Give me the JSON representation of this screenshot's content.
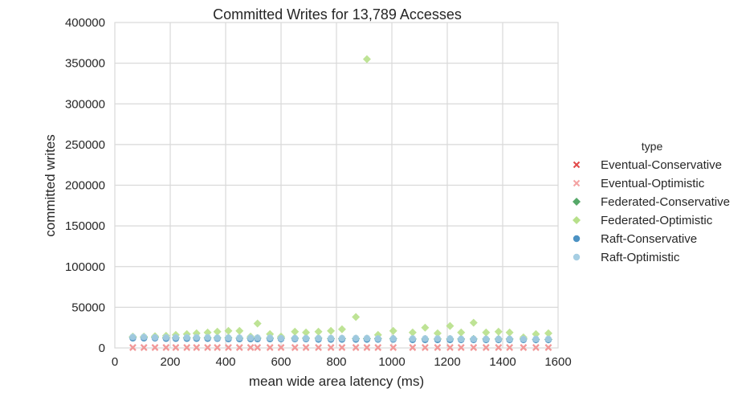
{
  "chart_data": {
    "type": "scatter",
    "title": "Committed Writes for 13,789 Accesses",
    "xlabel": "mean wide area latency (ms)",
    "ylabel": "committed writes",
    "xlim": [
      0,
      1600
    ],
    "ylim": [
      0,
      400000
    ],
    "xticks": [
      "0",
      "200",
      "400",
      "600",
      "800",
      "1000",
      "1200",
      "1400",
      "1600"
    ],
    "yticks": [
      "0",
      "50000",
      "100000",
      "150000",
      "200000",
      "250000",
      "300000",
      "350000",
      "400000"
    ],
    "grid": true,
    "legend": {
      "title": "type",
      "placement": "right"
    },
    "x": [
      65,
      105,
      145,
      185,
      220,
      260,
      295,
      335,
      370,
      410,
      450,
      490,
      515,
      560,
      600,
      650,
      690,
      735,
      780,
      820,
      870,
      910,
      950,
      1005,
      1075,
      1120,
      1165,
      1210,
      1250,
      1295,
      1340,
      1385,
      1425,
      1475,
      1520,
      1565
    ],
    "series": [
      {
        "name": "Eventual-Conservative",
        "marker": "x",
        "color": "#e24a4a",
        "values": [
          500,
          500,
          500,
          500,
          500,
          500,
          500,
          500,
          500,
          500,
          500,
          500,
          500,
          500,
          500,
          500,
          500,
          500,
          500,
          500,
          500,
          500,
          500,
          500,
          500,
          500,
          500,
          500,
          500,
          500,
          500,
          500,
          500,
          500,
          500,
          500
        ]
      },
      {
        "name": "Eventual-Optimistic",
        "marker": "x",
        "color": "#f4a3a3",
        "values": [
          800,
          800,
          800,
          800,
          800,
          800,
          800,
          800,
          800,
          800,
          800,
          800,
          800,
          800,
          800,
          800,
          800,
          800,
          800,
          800,
          800,
          800,
          800,
          800,
          800,
          800,
          800,
          800,
          800,
          800,
          800,
          800,
          800,
          800,
          800,
          800
        ]
      },
      {
        "name": "Federated-Conservative",
        "marker": "diamond",
        "color": "#55a868",
        "values": [
          13000,
          13000,
          13000,
          12500,
          12500,
          12500,
          12500,
          12500,
          12500,
          12500,
          12000,
          12000,
          12000,
          12000,
          12000,
          12000,
          12000,
          12000,
          11500,
          11500,
          11500,
          11500,
          11500,
          11500,
          11000,
          11000,
          11000,
          11000,
          11000,
          11000,
          11000,
          11000,
          11000,
          11000,
          10500,
          10500
        ]
      },
      {
        "name": "Federated-Optimistic",
        "marker": "diamond",
        "color": "#b7e08a",
        "values": [
          14000,
          14000,
          14500,
          15000,
          16000,
          17000,
          18000,
          19000,
          20000,
          21000,
          21000,
          14000,
          30000,
          17000,
          14000,
          20000,
          19000,
          20000,
          21000,
          23000,
          38000,
          355000,
          16000,
          21000,
          19000,
          25000,
          18000,
          27000,
          19000,
          31000,
          19000,
          20000,
          19000,
          13000,
          17000,
          18000
        ]
      },
      {
        "name": "Raft-Conservative",
        "marker": "circle",
        "color": "#4c92c3",
        "values": [
          12000,
          12000,
          12000,
          11500,
          11500,
          11500,
          11500,
          11500,
          11500,
          11000,
          11000,
          11000,
          11000,
          11000,
          11000,
          11000,
          11000,
          10500,
          10500,
          10500,
          10500,
          10500,
          10500,
          10500,
          10000,
          10000,
          10000,
          10000,
          10000,
          10000,
          10000,
          10000,
          10000,
          10000,
          10000,
          10000
        ]
      },
      {
        "name": "Raft-Optimistic",
        "marker": "circle",
        "color": "#a6cee3",
        "values": [
          13500,
          13500,
          13000,
          13000,
          13000,
          13000,
          13000,
          13000,
          12500,
          12500,
          12500,
          12500,
          12500,
          12500,
          12000,
          12000,
          12000,
          12000,
          12000,
          12000,
          12000,
          12000,
          11500,
          11500,
          11500,
          11500,
          11500,
          11500,
          11000,
          11000,
          11000,
          11000,
          11000,
          11000,
          11000,
          11000
        ]
      }
    ]
  }
}
